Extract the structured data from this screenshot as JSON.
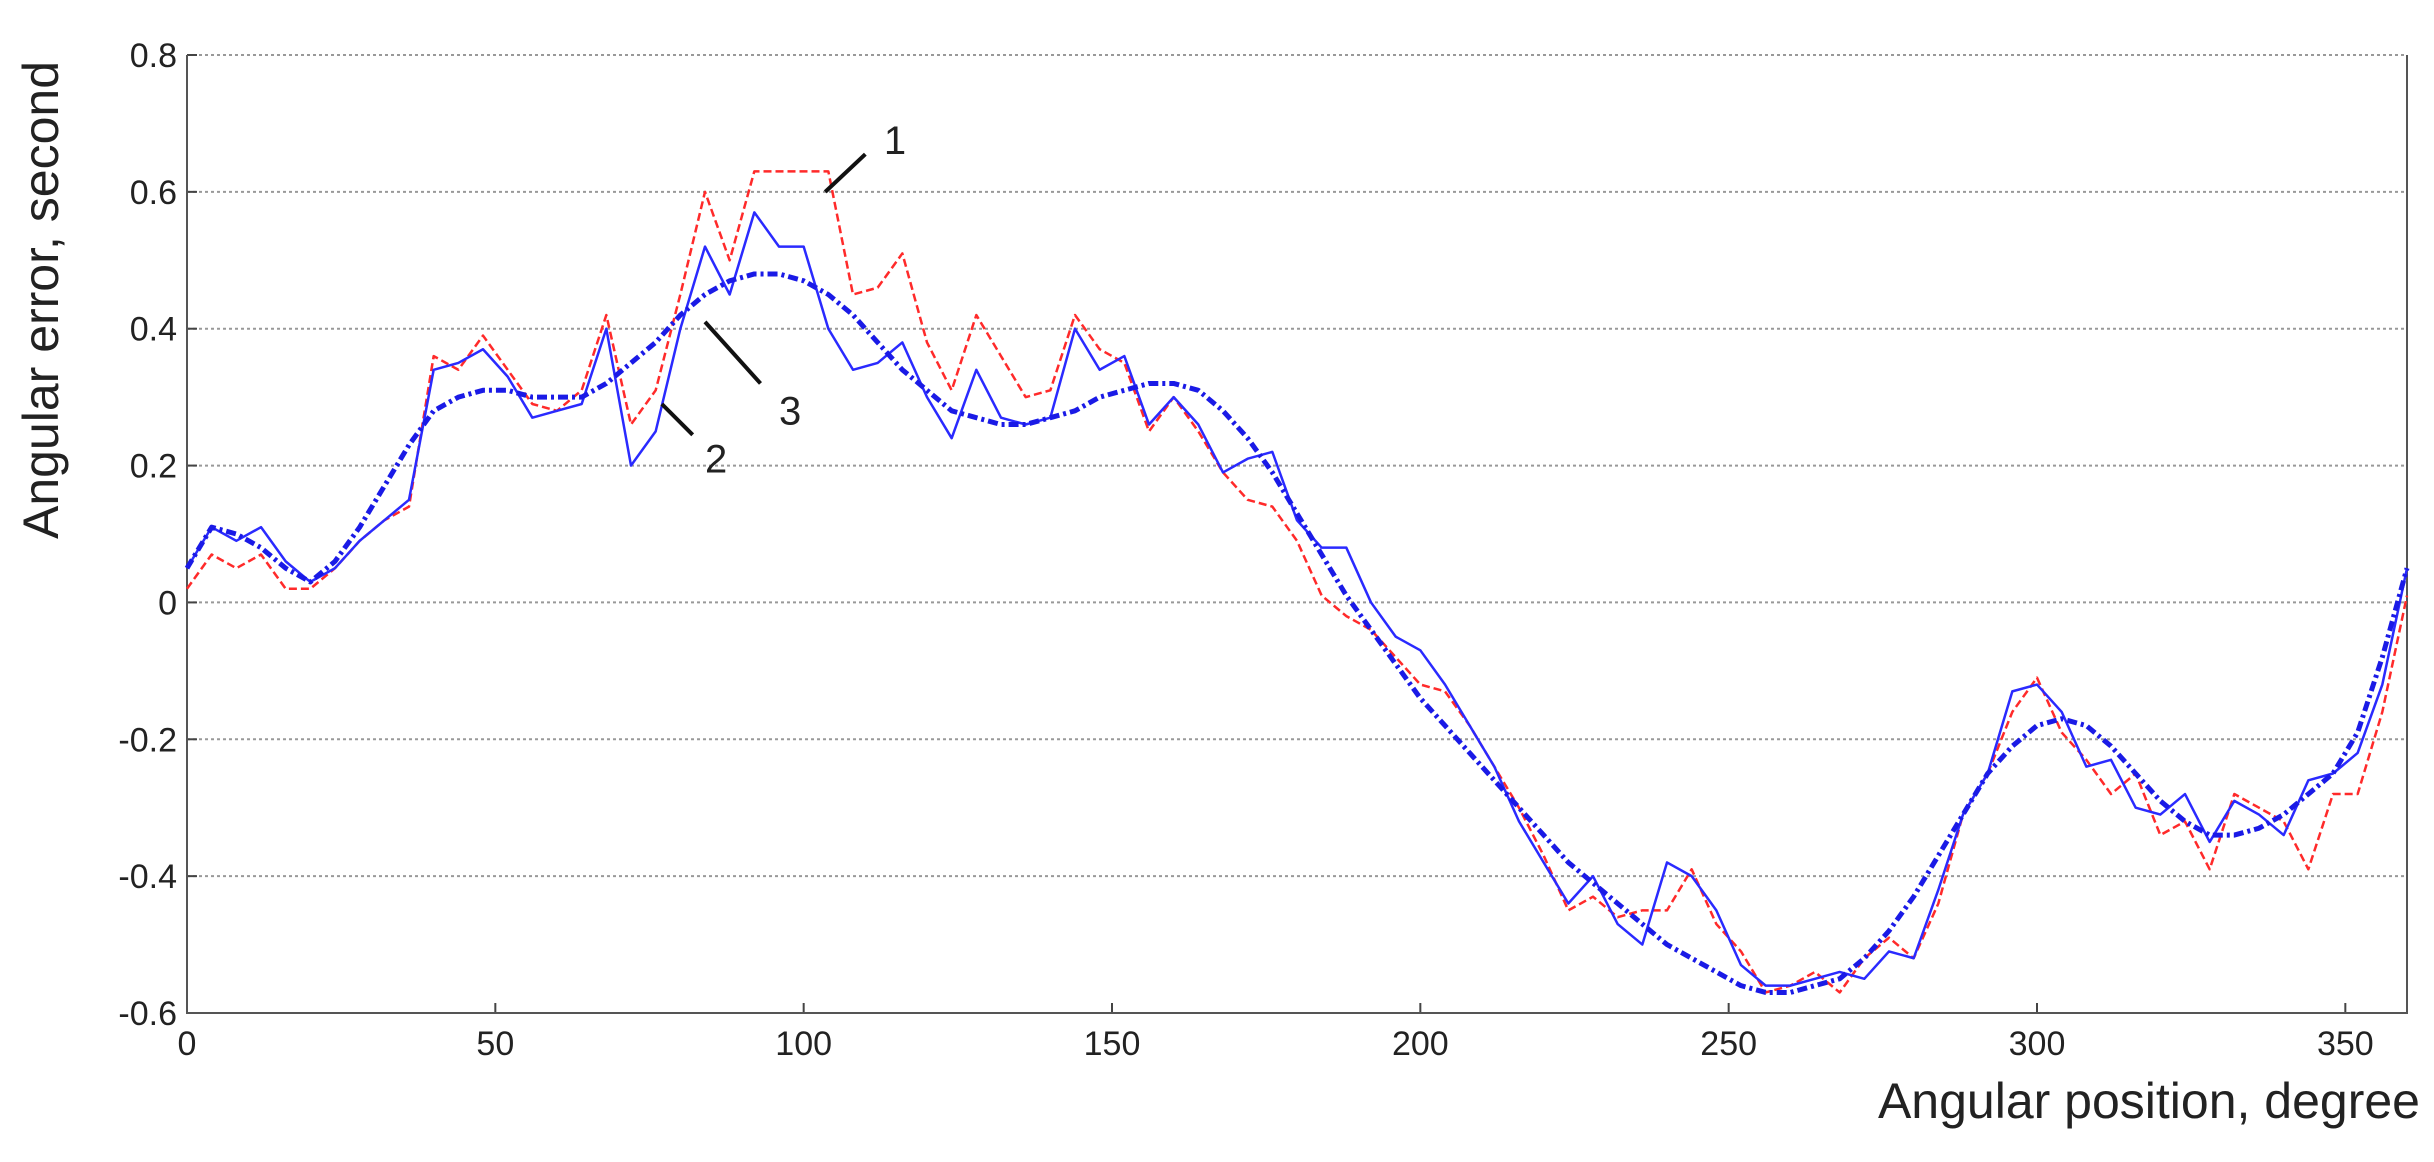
{
  "chart_data": {
    "type": "line",
    "x_label": "Angular position, degree",
    "y_label": "Angular error, second",
    "x": [
      0,
      4,
      8,
      12,
      16,
      20,
      24,
      28,
      32,
      36,
      40,
      44,
      48,
      52,
      56,
      60,
      64,
      68,
      72,
      76,
      80,
      84,
      88,
      92,
      96,
      100,
      104,
      108,
      112,
      116,
      120,
      124,
      128,
      132,
      136,
      140,
      144,
      148,
      152,
      156,
      160,
      164,
      168,
      172,
      176,
      180,
      184,
      188,
      192,
      196,
      200,
      204,
      208,
      212,
      216,
      220,
      224,
      228,
      232,
      236,
      240,
      244,
      248,
      252,
      256,
      260,
      264,
      268,
      272,
      276,
      280,
      284,
      288,
      292,
      296,
      300,
      304,
      308,
      312,
      316,
      320,
      324,
      328,
      332,
      336,
      340,
      344,
      348,
      352,
      356,
      360
    ],
    "series": [
      {
        "name": "1",
        "color": "#ff2a2a",
        "style": "dashed",
        "values": [
          0.02,
          0.07,
          0.05,
          0.07,
          0.02,
          0.02,
          0.05,
          0.09,
          0.12,
          0.14,
          0.36,
          0.34,
          0.39,
          0.34,
          0.29,
          0.28,
          0.31,
          0.42,
          0.26,
          0.31,
          0.45,
          0.6,
          0.5,
          0.63,
          0.63,
          0.63,
          0.63,
          0.45,
          0.46,
          0.51,
          0.38,
          0.31,
          0.42,
          0.36,
          0.3,
          0.31,
          0.42,
          0.37,
          0.35,
          0.25,
          0.3,
          0.25,
          0.19,
          0.15,
          0.14,
          0.09,
          0.01,
          -0.02,
          -0.04,
          -0.08,
          -0.12,
          -0.13,
          -0.18,
          -0.24,
          -0.3,
          -0.37,
          -0.45,
          -0.43,
          -0.46,
          -0.45,
          -0.45,
          -0.39,
          -0.47,
          -0.51,
          -0.57,
          -0.56,
          -0.54,
          -0.57,
          -0.52,
          -0.49,
          -0.52,
          -0.44,
          -0.31,
          -0.25,
          -0.16,
          -0.11,
          -0.19,
          -0.23,
          -0.28,
          -0.25,
          -0.34,
          -0.32,
          -0.39,
          -0.28,
          -0.3,
          -0.32,
          -0.39,
          -0.28,
          -0.28,
          -0.16,
          0.01
        ]
      },
      {
        "name": "2",
        "color": "#2a2aff",
        "style": "solid",
        "values": [
          0.05,
          0.11,
          0.09,
          0.11,
          0.06,
          0.03,
          0.05,
          0.09,
          0.12,
          0.15,
          0.34,
          0.35,
          0.37,
          0.33,
          0.27,
          0.28,
          0.29,
          0.4,
          0.2,
          0.25,
          0.4,
          0.52,
          0.45,
          0.57,
          0.52,
          0.52,
          0.4,
          0.34,
          0.35,
          0.38,
          0.3,
          0.24,
          0.34,
          0.27,
          0.26,
          0.27,
          0.4,
          0.34,
          0.36,
          0.26,
          0.3,
          0.26,
          0.19,
          0.21,
          0.22,
          0.12,
          0.08,
          0.08,
          0.0,
          -0.05,
          -0.07,
          -0.12,
          -0.18,
          -0.24,
          -0.32,
          -0.38,
          -0.44,
          -0.4,
          -0.47,
          -0.5,
          -0.38,
          -0.4,
          -0.45,
          -0.53,
          -0.56,
          -0.56,
          -0.55,
          -0.54,
          -0.55,
          -0.51,
          -0.52,
          -0.42,
          -0.31,
          -0.25,
          -0.13,
          -0.12,
          -0.16,
          -0.24,
          -0.23,
          -0.3,
          -0.31,
          -0.28,
          -0.35,
          -0.29,
          -0.31,
          -0.34,
          -0.26,
          -0.25,
          -0.22,
          -0.12,
          0.05
        ]
      },
      {
        "name": "3",
        "color": "#1a1ae6",
        "style": "dashdot",
        "values": [
          0.05,
          0.11,
          0.1,
          0.08,
          0.05,
          0.03,
          0.06,
          0.11,
          0.17,
          0.23,
          0.28,
          0.3,
          0.31,
          0.31,
          0.3,
          0.3,
          0.3,
          0.32,
          0.35,
          0.38,
          0.42,
          0.45,
          0.47,
          0.48,
          0.48,
          0.47,
          0.45,
          0.42,
          0.38,
          0.34,
          0.31,
          0.28,
          0.27,
          0.26,
          0.26,
          0.27,
          0.28,
          0.3,
          0.31,
          0.32,
          0.32,
          0.31,
          0.28,
          0.24,
          0.19,
          0.13,
          0.07,
          0.01,
          -0.04,
          -0.09,
          -0.14,
          -0.18,
          -0.22,
          -0.26,
          -0.3,
          -0.34,
          -0.38,
          -0.41,
          -0.44,
          -0.47,
          -0.5,
          -0.52,
          -0.54,
          -0.56,
          -0.57,
          -0.57,
          -0.56,
          -0.55,
          -0.52,
          -0.48,
          -0.43,
          -0.37,
          -0.31,
          -0.25,
          -0.21,
          -0.18,
          -0.17,
          -0.18,
          -0.21,
          -0.25,
          -0.29,
          -0.32,
          -0.34,
          -0.34,
          -0.33,
          -0.31,
          -0.28,
          -0.25,
          -0.19,
          -0.08,
          0.05
        ]
      }
    ],
    "xlim": [
      0,
      360
    ],
    "xticks": [
      0,
      50,
      100,
      150,
      200,
      250,
      300,
      350
    ],
    "ylim": [
      -0.6,
      0.8
    ],
    "yticks": [
      -0.6,
      -0.4,
      -0.2,
      0,
      0.2,
      0.4,
      0.6,
      0.8
    ],
    "grid": true
  }
}
